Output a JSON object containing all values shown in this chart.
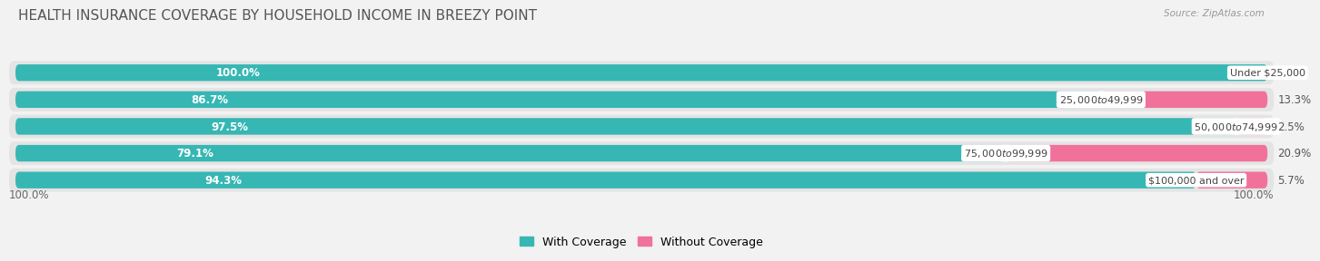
{
  "title": "HEALTH INSURANCE COVERAGE BY HOUSEHOLD INCOME IN BREEZY POINT",
  "source": "Source: ZipAtlas.com",
  "categories": [
    "Under $25,000",
    "$25,000 to $49,999",
    "$50,000 to $74,999",
    "$75,000 to $99,999",
    "$100,000 and over"
  ],
  "with_coverage": [
    100.0,
    86.7,
    97.5,
    79.1,
    94.3
  ],
  "without_coverage": [
    0.0,
    13.3,
    2.5,
    20.9,
    5.7
  ],
  "color_with": "#36b7b4",
  "color_without": "#f0729a",
  "color_with_light": "#a8dedd",
  "color_without_light": "#f9c0d2",
  "background_color": "#f2f2f2",
  "row_bg": "#e4e4e4",
  "legend_labels": [
    "With Coverage",
    "Without Coverage"
  ],
  "left_label": "100.0%",
  "right_label": "100.0%",
  "title_fontsize": 11,
  "label_fontsize": 8.5,
  "cat_fontsize": 8,
  "tick_fontsize": 8.5
}
